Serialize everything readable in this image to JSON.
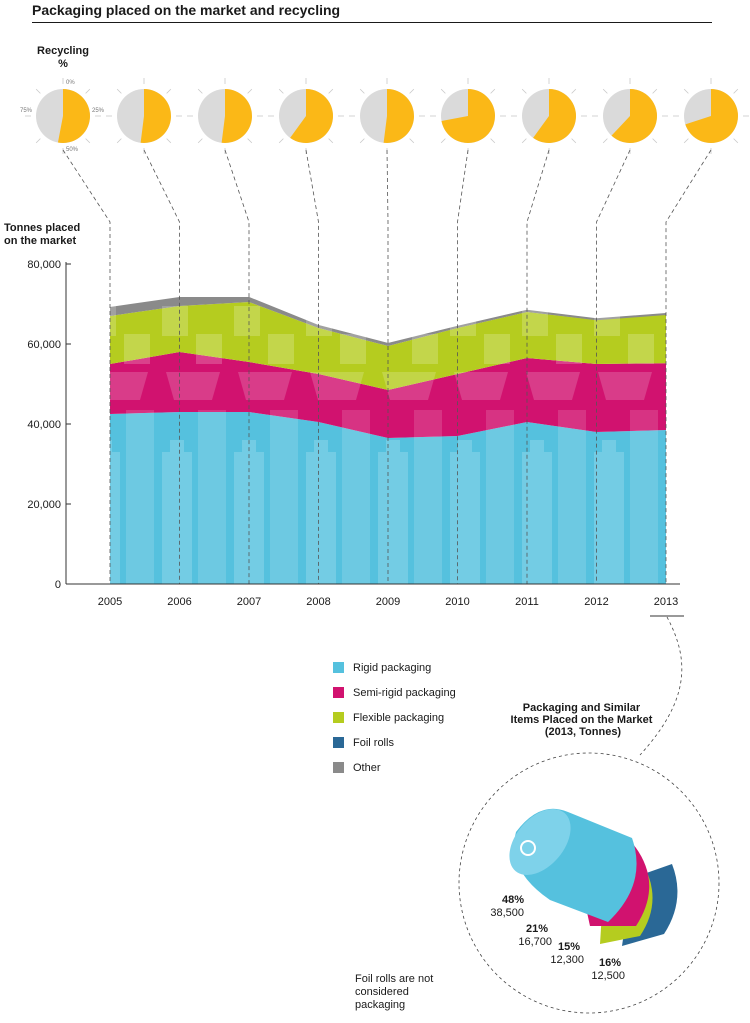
{
  "page_title": "Packaging placed on the market and recycling",
  "note": "Foil rolls are not considered packaging",
  "colors": {
    "rigid": "#55c1de",
    "semi_rigid": "#d1126f",
    "flexible": "#b5cc1f",
    "foil": "#2a6896",
    "other": "#8a8a8a",
    "recycling": "#fbb817",
    "pie_bg": "#dadada"
  },
  "legend": [
    {
      "label": "Rigid packaging",
      "color": "#55c1de"
    },
    {
      "label": "Semi-rigid packaging",
      "color": "#d1126f"
    },
    {
      "label": "Flexible packaging",
      "color": "#b5cc1f"
    },
    {
      "label": "Foil rolls",
      "color": "#2a6896"
    },
    {
      "label": "Other",
      "color": "#8a8a8a"
    }
  ],
  "chart_data": [
    {
      "type": "pie",
      "title": "Recycling",
      "unit": "%",
      "scale_labels": [
        "0%",
        "25%",
        "50%",
        "75%"
      ],
      "years": [
        "2005",
        "2006",
        "2007",
        "2008",
        "2009",
        "2010",
        "2011",
        "2012",
        "2013"
      ],
      "values": [
        53,
        52,
        52,
        60,
        52,
        72,
        60,
        62,
        70
      ]
    },
    {
      "type": "area",
      "ylabel": "Tonnes placed on the market",
      "ylim": [
        0,
        80000
      ],
      "yticks": [
        "80,000",
        "60,000",
        "40,000",
        "20,000",
        "0"
      ],
      "ytick_values": [
        80000,
        60000,
        40000,
        20000,
        0
      ],
      "x": [
        "2005",
        "2006",
        "2007",
        "2008",
        "2009",
        "2010",
        "2011",
        "2012",
        "2013"
      ],
      "series": [
        {
          "name": "Rigid packaging",
          "values": [
            42500,
            43000,
            43000,
            40500,
            36500,
            37000,
            40500,
            38000,
            38500
          ]
        },
        {
          "name": "Semi-rigid packaging",
          "values": [
            12500,
            15000,
            12500,
            12000,
            12000,
            15500,
            16000,
            17000,
            16700
          ]
        },
        {
          "name": "Flexible packaging",
          "values": [
            12000,
            11500,
            15000,
            11500,
            11000,
            11500,
            11500,
            11000,
            12300
          ]
        },
        {
          "name": "Other",
          "values": [
            2000,
            2000,
            1000,
            500,
            500,
            300,
            300,
            200,
            0
          ]
        }
      ]
    },
    {
      "type": "bar",
      "title": "Packaging and Similar Items Placed on the Market (2013, Tonnes)",
      "segments": [
        {
          "name": "Rigid packaging",
          "pct": "48%",
          "value": "38,500"
        },
        {
          "name": "Semi-rigid packaging",
          "pct": "21%",
          "value": "16,700"
        },
        {
          "name": "Flexible packaging",
          "pct": "15%",
          "value": "12,300"
        },
        {
          "name": "Foil rolls",
          "pct": "16%",
          "value": "12,500"
        }
      ]
    }
  ]
}
